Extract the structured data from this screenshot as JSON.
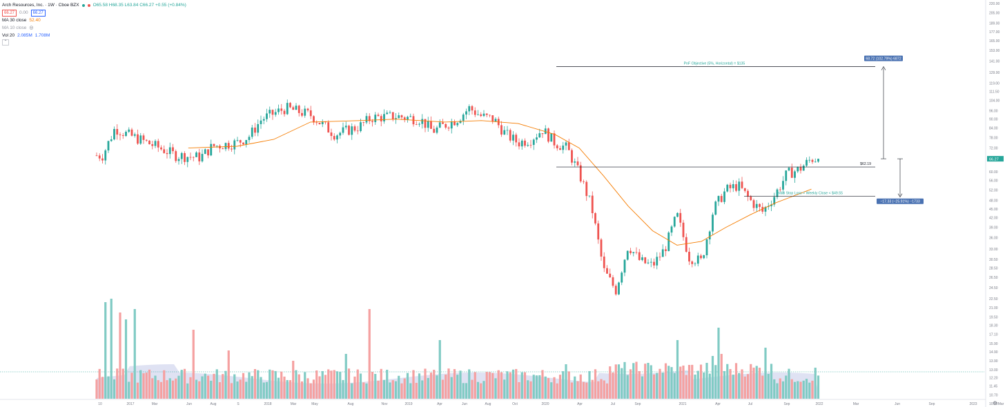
{
  "legend": {
    "title": "Arch Resources, Inc. · 1W · Cboe BZX",
    "sell_price": "66.27",
    "spread": "0.00",
    "buy_price": "66.27",
    "ohlc": "O65.58 H68.35 L63.84 C66.27 +0.55 (+0.84%)",
    "ma30_label": "MA 30 close",
    "ma30_value": "52.40",
    "ma10_label": "MA 10 close",
    "vol_label": "Vol 20",
    "vol_value": "2.085M",
    "vol_ma_value": "1.708M"
  },
  "colors": {
    "up": "#26a69a",
    "down": "#ef5350",
    "ma": "#f57c00",
    "vol_up": "#80cbc4",
    "vol_down": "#f5a0a0",
    "vol_ma_area": "#c5cae9",
    "label_bg": "#4a72b2"
  },
  "chart_data": {
    "type": "candlestick",
    "price_axis": {
      "scale": "log",
      "ticks": [
        10.0,
        10.7,
        11.45,
        12.2,
        13.0,
        13.9,
        14.9,
        15.9,
        17.1,
        18.3,
        19.5,
        21.0,
        22.5,
        24.5,
        26.5,
        28.5,
        30.5,
        33.0,
        36.0,
        39.0,
        42.0,
        45.0,
        48.0,
        52.0,
        56.0,
        60.0,
        66.27,
        72.0,
        78.0,
        84.0,
        90.0,
        96.0,
        104.0,
        111.5,
        119.0,
        129.0,
        141.0,
        153.0,
        165.0,
        177.0,
        189.0,
        205.0,
        220.0
      ],
      "last_price": "66.27"
    },
    "time_axis": {
      "labels": [
        "10",
        "2017",
        "Mar",
        "Jun",
        "Aug",
        "S",
        "2018",
        "Mar",
        "May",
        "Aug",
        "Nov",
        "2019",
        "Apr",
        "Jun",
        "Aug",
        "Oct",
        "2020",
        "Apr",
        "Jul",
        "Sep",
        "2021",
        "Apr",
        "Jul",
        "Sep",
        "2022",
        "Mar",
        "Jun",
        "Sep",
        "2023",
        "Mar"
      ]
    },
    "price_series": [
      {
        "t": "2016-10",
        "price": 68
      },
      {
        "t": "2016-11",
        "price": 84
      },
      {
        "t": "2016-12",
        "price": 80
      },
      {
        "t": "2017-01",
        "price": 77
      },
      {
        "t": "2017-03",
        "price": 71
      },
      {
        "t": "2017-04",
        "price": 68
      },
      {
        "t": "2017-06",
        "price": 67
      },
      {
        "t": "2017-07",
        "price": 73
      },
      {
        "t": "2017-09",
        "price": 75
      },
      {
        "t": "2017-10",
        "price": 79
      },
      {
        "t": "2017-11",
        "price": 90
      },
      {
        "t": "2017-12",
        "price": 94
      },
      {
        "t": "2018-01",
        "price": 98
      },
      {
        "t": "2018-03",
        "price": 93
      },
      {
        "t": "2018-05",
        "price": 80
      },
      {
        "t": "2018-07",
        "price": 85
      },
      {
        "t": "2018-08",
        "price": 91
      },
      {
        "t": "2018-10",
        "price": 92
      },
      {
        "t": "2018-12",
        "price": 90
      },
      {
        "t": "2019-01",
        "price": 82
      },
      {
        "t": "2019-02",
        "price": 86
      },
      {
        "t": "2019-03",
        "price": 90
      },
      {
        "t": "2019-04",
        "price": 98
      },
      {
        "t": "2019-05",
        "price": 92
      },
      {
        "t": "2019-06",
        "price": 90
      },
      {
        "t": "2019-07",
        "price": 80
      },
      {
        "t": "2019-08",
        "price": 75
      },
      {
        "t": "2019-09",
        "price": 77
      },
      {
        "t": "2019-10",
        "price": 83
      },
      {
        "t": "2019-11",
        "price": 75
      },
      {
        "t": "2019-12",
        "price": 72
      },
      {
        "t": "2020-01",
        "price": 59
      },
      {
        "t": "2020-02",
        "price": 46
      },
      {
        "t": "2020-03",
        "price": 28
      },
      {
        "t": "2020-04",
        "price": 24
      },
      {
        "t": "2020-05",
        "price": 34
      },
      {
        "t": "2020-06",
        "price": 30
      },
      {
        "t": "2020-07",
        "price": 29
      },
      {
        "t": "2020-08",
        "price": 33
      },
      {
        "t": "2020-09",
        "price": 43
      },
      {
        "t": "2020-10",
        "price": 31
      },
      {
        "t": "2020-11",
        "price": 30
      },
      {
        "t": "2020-12",
        "price": 45
      },
      {
        "t": "2021-01",
        "price": 52
      },
      {
        "t": "2021-02",
        "price": 54
      },
      {
        "t": "2021-03",
        "price": 48
      },
      {
        "t": "2021-04",
        "price": 44
      },
      {
        "t": "2021-05",
        "price": 50
      },
      {
        "t": "2021-06",
        "price": 59
      },
      {
        "t": "2021-07",
        "price": 61
      },
      {
        "t": "2021-08",
        "price": 66.27
      }
    ],
    "ma30": [
      {
        "t": "2017-05",
        "v": 72
      },
      {
        "t": "2017-09",
        "v": 73
      },
      {
        "t": "2017-12",
        "v": 77
      },
      {
        "t": "2018-03",
        "v": 88
      },
      {
        "t": "2018-07",
        "v": 89
      },
      {
        "t": "2018-10",
        "v": 90
      },
      {
        "t": "2019-02",
        "v": 88
      },
      {
        "t": "2019-05",
        "v": 89
      },
      {
        "t": "2019-08",
        "v": 87
      },
      {
        "t": "2019-11",
        "v": 80
      },
      {
        "t": "2020-01",
        "v": 72
      },
      {
        "t": "2020-03",
        "v": 58
      },
      {
        "t": "2020-05",
        "v": 46
      },
      {
        "t": "2020-07",
        "v": 38
      },
      {
        "t": "2020-09",
        "v": 34
      },
      {
        "t": "2020-11",
        "v": 35
      },
      {
        "t": "2021-01",
        "v": 39
      },
      {
        "t": "2021-03",
        "v": 43
      },
      {
        "t": "2021-05",
        "v": 47
      },
      {
        "t": "2021-08",
        "v": 52.4
      }
    ],
    "annotations": [
      {
        "label": "PnF Objective (5%, Horizontal) = $135",
        "price": 135
      },
      {
        "label": "$62.19",
        "price": 62.19
      },
      {
        "label": "Initial Stop Loss = Weekly Close < $49.55",
        "price": 49.55
      },
      {
        "label": "68.72 (102.79%) 6872",
        "price": 135
      },
      {
        "label": "−17.33 (−25.91%) −1733",
        "price": 49.55
      }
    ]
  }
}
